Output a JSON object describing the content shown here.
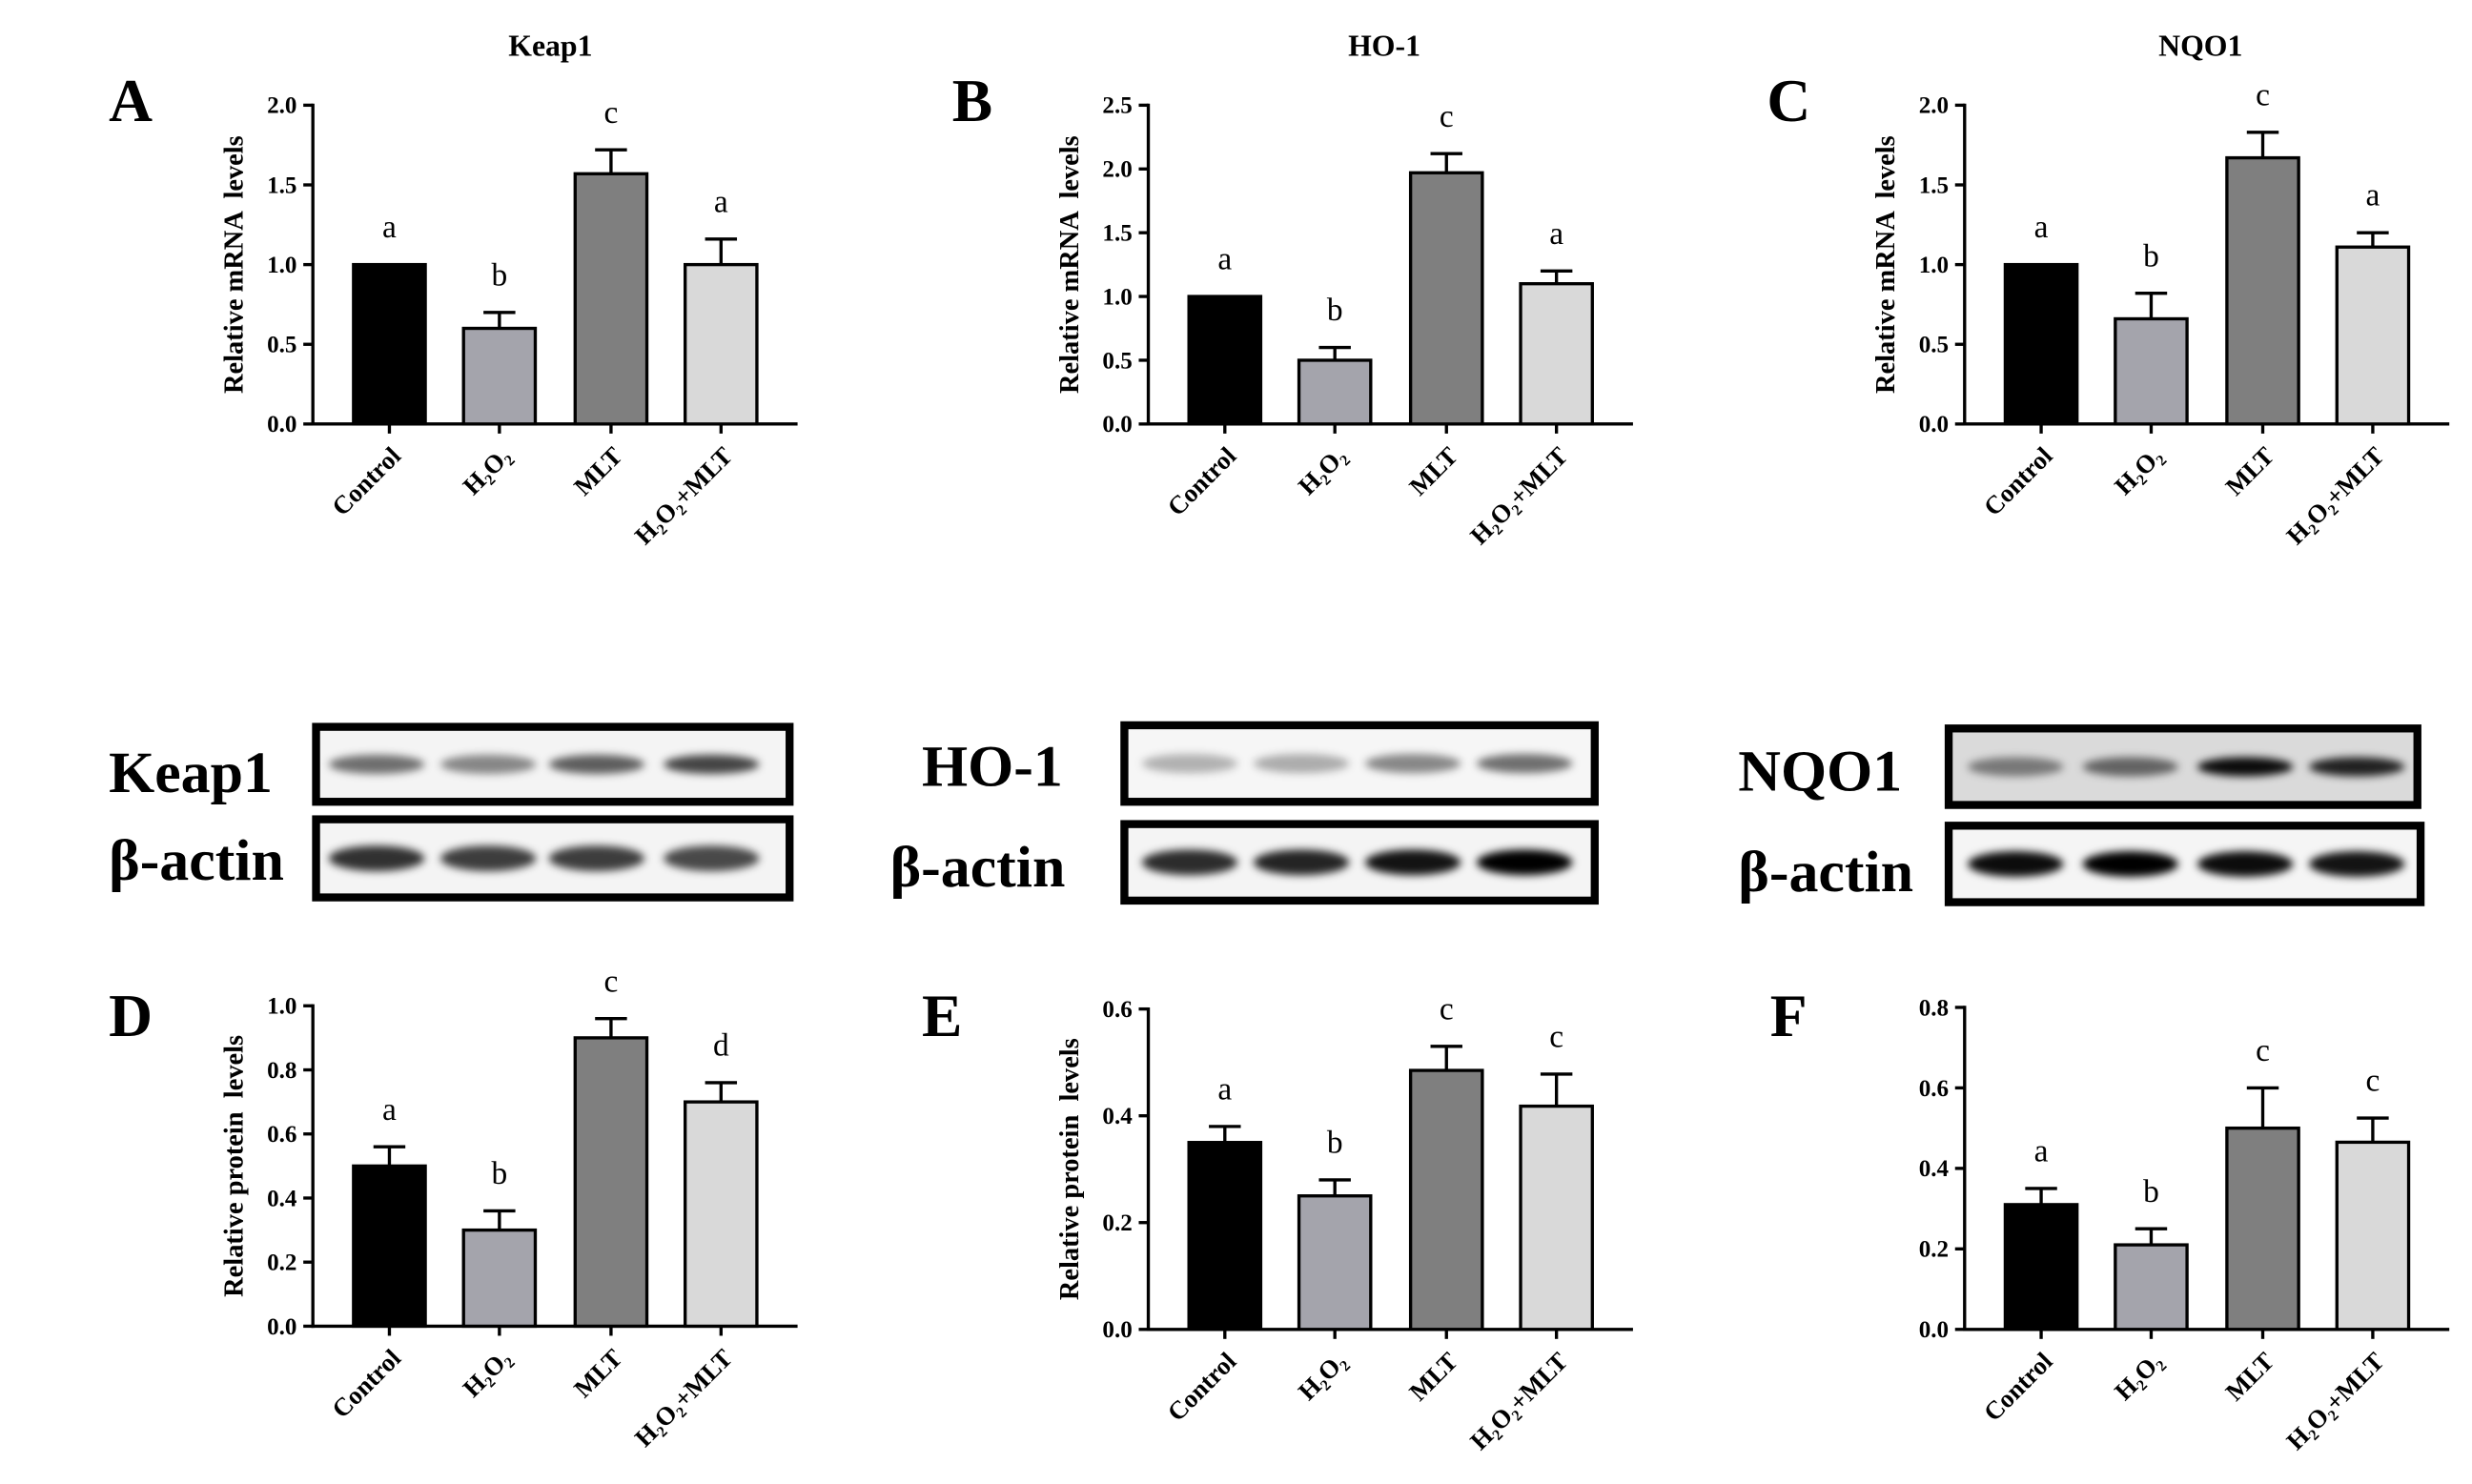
{
  "bar_colors": [
    "#000000",
    "#a4a4ac",
    "#7f7f7f",
    "#d9d9d9"
  ],
  "chart_data": [
    {
      "panel": "A",
      "type": "bar",
      "title": "Keap1",
      "ylabel": "Relative mRNA  levels",
      "categories": [
        "Control",
        "H₂O₂",
        "MLT",
        "H₂O₂+MLT"
      ],
      "values": [
        1.0,
        0.6,
        1.57,
        1.0
      ],
      "errors": [
        0,
        0.1,
        0.15,
        0.16
      ],
      "significance": [
        "a",
        "b",
        "c",
        "a"
      ],
      "yticks": [
        "0.0",
        "0.5",
        "1.0",
        "1.5",
        "2.0"
      ],
      "ylim": [
        0,
        2.0
      ]
    },
    {
      "panel": "B",
      "type": "bar",
      "title": "HO-1",
      "ylabel": "Relative mRNA  levels",
      "categories": [
        "Control",
        "H₂O₂",
        "MLT",
        "H₂O₂+MLT"
      ],
      "values": [
        1.0,
        0.5,
        1.97,
        1.1
      ],
      "errors": [
        0,
        0.1,
        0.15,
        0.1
      ],
      "significance": [
        "a",
        "b",
        "c",
        "a"
      ],
      "yticks": [
        "0.0",
        "0.5",
        "1.0",
        "1.5",
        "2.0",
        "2.5"
      ],
      "ylim": [
        0,
        2.5
      ]
    },
    {
      "panel": "C",
      "type": "bar",
      "title": "NQO1",
      "ylabel": "Relative mRNA  levels",
      "categories": [
        "Control",
        "H₂O₂",
        "MLT",
        "H₂O₂+MLT"
      ],
      "values": [
        1.0,
        0.66,
        1.67,
        1.11
      ],
      "errors": [
        0,
        0.16,
        0.16,
        0.09
      ],
      "significance": [
        "a",
        "b",
        "c",
        "a"
      ],
      "yticks": [
        "0.0",
        "0.5",
        "1.0",
        "1.5",
        "2.0"
      ],
      "ylim": [
        0,
        2.0
      ]
    },
    {
      "panel": "D",
      "type": "bar",
      "ylabel": "Relative protein  levels",
      "categories": [
        "Control",
        "H₂O₂",
        "MLT",
        "H₂O₂+MLT"
      ],
      "values": [
        0.5,
        0.3,
        0.9,
        0.7
      ],
      "errors": [
        0.06,
        0.06,
        0.06,
        0.06
      ],
      "significance": [
        "a",
        "b",
        "c",
        "d"
      ],
      "yticks": [
        "0.0",
        "0.2",
        "0.4",
        "0.6",
        "0.8",
        "1.0"
      ],
      "ylim": [
        0,
        1.0
      ]
    },
    {
      "panel": "E",
      "type": "bar",
      "ylabel": "Relative protein  levels",
      "categories": [
        "Control",
        "H₂O₂",
        "MLT",
        "H₂O₂+MLT"
      ],
      "values": [
        0.35,
        0.25,
        0.485,
        0.418
      ],
      "errors": [
        0.03,
        0.03,
        0.045,
        0.06
      ],
      "significance": [
        "a",
        "b",
        "c",
        "c"
      ],
      "yticks": [
        "0.0",
        "0.2",
        "0.4",
        "0.6"
      ],
      "ylim": [
        0,
        0.6
      ]
    },
    {
      "panel": "F",
      "type": "bar",
      "categories": [
        "Control",
        "H₂O₂",
        "MLT",
        "H₂O₂+MLT"
      ],
      "values": [
        0.31,
        0.21,
        0.5,
        0.465
      ],
      "errors": [
        0.04,
        0.04,
        0.1,
        0.06
      ],
      "significance": [
        "a",
        "b",
        "c",
        "c"
      ],
      "yticks": [
        "0.0",
        "0.2",
        "0.4",
        "0.6",
        "0.8"
      ],
      "ylim": [
        0,
        0.8
      ]
    }
  ],
  "blots": [
    {
      "target": {
        "label": "Keap1",
        "background": "#f4f4f4",
        "band_intensity": [
          0.55,
          0.45,
          0.62,
          0.72
        ]
      },
      "loading": {
        "label": "β-actin",
        "background": "#f4f4f4",
        "band_intensity": [
          0.8,
          0.75,
          0.75,
          0.7
        ]
      }
    },
    {
      "target": {
        "label": "HO-1",
        "background": "#f6f6f6",
        "band_intensity": [
          0.28,
          0.3,
          0.45,
          0.55
        ]
      },
      "loading": {
        "label": "β-actin",
        "background": "#f4f4f4",
        "band_intensity": [
          0.82,
          0.85,
          0.92,
          1.0
        ]
      }
    },
    {
      "target": {
        "label": "NQO1",
        "background": "#dadada",
        "band_intensity": [
          0.45,
          0.55,
          0.95,
          0.85
        ]
      },
      "loading": {
        "label": "β-actin",
        "background": "#f5f5f5",
        "band_intensity": [
          0.95,
          1.0,
          0.95,
          0.92
        ]
      }
    }
  ]
}
